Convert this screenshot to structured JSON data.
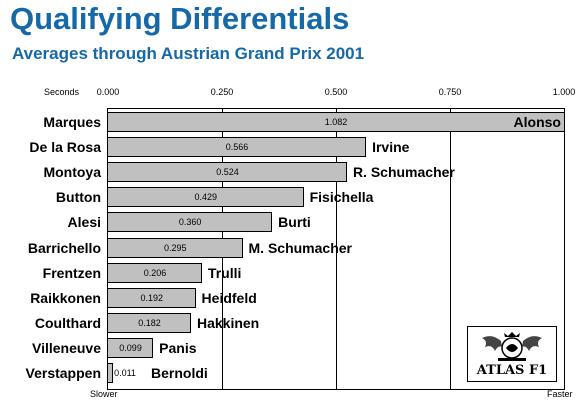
{
  "chart_data": {
    "type": "bar",
    "orientation": "horizontal",
    "title": "Qualifying Differentials",
    "subtitle": "Averages through Austrian Grand Prix 2001",
    "axis_unit": "Seconds",
    "xlim": [
      0,
      1
    ],
    "ticks": [
      "0.000",
      "0.250",
      "0.500",
      "0.750",
      "1.000"
    ],
    "x_start_label": "Slower",
    "x_end_label": "Faster",
    "grid": true,
    "rows": [
      {
        "slower": "Marques",
        "faster": "Alonso",
        "value": 1.082,
        "label": "1.082"
      },
      {
        "slower": "De la Rosa",
        "faster": "Irvine",
        "value": 0.566,
        "label": "0.566"
      },
      {
        "slower": "Montoya",
        "faster": "R. Schumacher",
        "value": 0.524,
        "label": "0.524"
      },
      {
        "slower": "Button",
        "faster": "Fisichella",
        "value": 0.429,
        "label": "0.429"
      },
      {
        "slower": "Alesi",
        "faster": "Burti",
        "value": 0.36,
        "label": "0.360"
      },
      {
        "slower": "Barrichello",
        "faster": "M. Schumacher",
        "value": 0.295,
        "label": "0.295"
      },
      {
        "slower": "Frentzen",
        "faster": "Trulli",
        "value": 0.206,
        "label": "0.206"
      },
      {
        "slower": "Raikkonen",
        "faster": "Heidfeld",
        "value": 0.192,
        "label": "0.192"
      },
      {
        "slower": "Coulthard",
        "faster": "Hakkinen",
        "value": 0.182,
        "label": "0.182"
      },
      {
        "slower": "Villeneuve",
        "faster": "Panis",
        "value": 0.099,
        "label": "0.099"
      },
      {
        "slower": "Verstappen",
        "faster": "Bernoldi",
        "value": 0.011,
        "label": "0.011"
      }
    ]
  },
  "logo": {
    "text": "ATLAS F1",
    "icon": "atlas-f1-crest-icon"
  },
  "colors": {
    "title": "#1569a8",
    "bar": "#c0c0c0"
  }
}
